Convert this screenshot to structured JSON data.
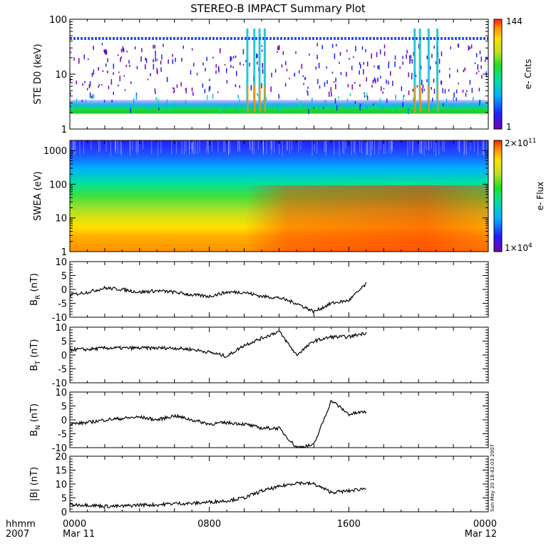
{
  "title": "STEREO-B IMPACT Summary Plot",
  "timestamp": "Sun May 20 18:42:03 2007",
  "colors": {
    "line": "#000000",
    "spectrogram": [
      "#7a00b0",
      "#2020ff",
      "#00b0ff",
      "#00e0a0",
      "#20e020",
      "#c0e020",
      "#ffe000",
      "#ff9000",
      "#ff2000"
    ]
  },
  "x_axis": {
    "row_labels": [
      "hhmm",
      "2007"
    ],
    "ticks": [
      {
        "time": "0000",
        "date": "Mar 11"
      },
      {
        "time": "0800",
        "date": ""
      },
      {
        "time": "1600",
        "date": ""
      },
      {
        "time": "0000",
        "date": "Mar 12"
      }
    ]
  },
  "chart_data": [
    {
      "type": "heatmap",
      "ylabel": "STE D0 (keV)",
      "yscale": "log",
      "ylim": [
        1,
        100
      ],
      "y_ticks": [
        "1",
        "10",
        "100"
      ],
      "colorbar": {
        "label": "e- Cnts",
        "max_label": "144",
        "min_label": "1",
        "range": [
          1,
          144
        ]
      },
      "x_range_hours": [
        0,
        24
      ],
      "bursts_hours": [
        10.2,
        10.6,
        10.9,
        11.2,
        19.8,
        20.1,
        20.6,
        21.1
      ]
    },
    {
      "type": "heatmap",
      "ylabel": "SWEA (eV)",
      "yscale": "log",
      "ylim": [
        1,
        2000
      ],
      "y_ticks": [
        "1",
        "10",
        "100",
        "1000"
      ],
      "colorbar": {
        "label": "e- Flux",
        "max_label": "2×10",
        "max_exp": "11",
        "min_label": "1×10",
        "min_exp": "4",
        "range": [
          10000,
          200000000000
        ]
      }
    },
    {
      "type": "line",
      "ylabel": "B",
      "ylabel_sub": "R",
      "ylabel_unit": "(nT)",
      "ylim": [
        -10,
        10
      ],
      "y_ticks": [
        "-10",
        "-5",
        "0",
        "5",
        "10"
      ],
      "x": [
        0,
        1,
        2,
        3,
        4,
        5,
        6,
        7,
        8,
        9,
        10,
        11,
        12,
        13,
        14,
        15,
        16,
        17
      ],
      "values": [
        -2,
        -1,
        0.5,
        0,
        -1,
        -0.5,
        -1,
        -2,
        -2.5,
        -1,
        -1,
        -2.5,
        -3,
        -5,
        -8,
        -5,
        -4,
        2
      ]
    },
    {
      "type": "line",
      "ylabel": "B",
      "ylabel_sub": "T",
      "ylabel_unit": "(nT)",
      "ylim": [
        -10,
        10
      ],
      "y_ticks": [
        "-10",
        "-5",
        "0",
        "5",
        "10"
      ],
      "x": [
        0,
        1,
        2,
        3,
        4,
        5,
        6,
        7,
        8,
        9,
        10,
        11,
        12,
        13,
        14,
        15,
        16,
        17
      ],
      "values": [
        2,
        2,
        2.5,
        2.5,
        2.5,
        2.5,
        2.5,
        2,
        1,
        -0.5,
        3.5,
        6,
        8.5,
        0,
        5,
        6.5,
        6.5,
        8
      ]
    },
    {
      "type": "line",
      "ylabel": "B",
      "ylabel_sub": "N",
      "ylabel_unit": "(nT)",
      "ylim": [
        -10,
        10
      ],
      "y_ticks": [
        "-10",
        "-5",
        "0",
        "5",
        "10"
      ],
      "x": [
        0,
        1,
        2,
        3,
        4,
        5,
        6,
        7,
        8,
        9,
        10,
        11,
        12,
        13,
        14,
        15,
        16,
        17
      ],
      "values": [
        -1.5,
        -1,
        0,
        0.5,
        1,
        0,
        1.5,
        0,
        -1.5,
        -1,
        -1.5,
        -3,
        -3,
        -10,
        -9,
        7,
        2,
        3
      ]
    },
    {
      "type": "line",
      "ylabel": "|B| (nT)",
      "ylim": [
        0,
        20
      ],
      "y_ticks": [
        "0",
        "5",
        "10",
        "15",
        "20"
      ],
      "x": [
        0,
        1,
        2,
        3,
        4,
        5,
        6,
        7,
        8,
        9,
        10,
        11,
        12,
        13,
        14,
        15,
        16,
        17
      ],
      "values": [
        2.5,
        2.5,
        2,
        2,
        2.5,
        2.5,
        3,
        3,
        3.5,
        4,
        5,
        7.5,
        9,
        10.5,
        10,
        7,
        7.5,
        8.5
      ]
    }
  ]
}
